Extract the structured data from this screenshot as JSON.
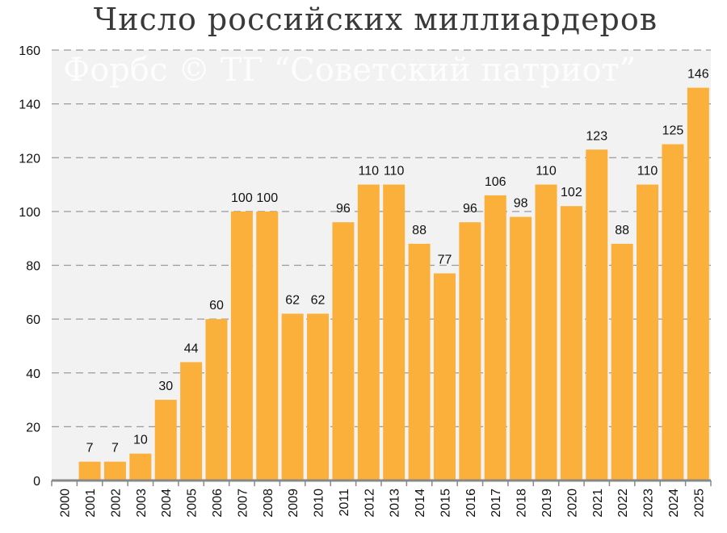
{
  "chart_data": {
    "type": "bar",
    "title": "Число российских миллиардеров",
    "watermark": "Форбс © ТГ “Советский патриот”",
    "categories": [
      "2000",
      "2001",
      "2002",
      "2003",
      "2004",
      "2005",
      "2006",
      "2007",
      "2008",
      "2009",
      "2010",
      "2011",
      "2012",
      "2013",
      "2014",
      "2015",
      "2016",
      "2017",
      "2018",
      "2019",
      "2020",
      "2021",
      "2022",
      "2023",
      "2024",
      "2025"
    ],
    "values": [
      0,
      7,
      7,
      10,
      30,
      44,
      60,
      100,
      100,
      62,
      62,
      96,
      110,
      110,
      88,
      77,
      96,
      106,
      98,
      110,
      102,
      123,
      88,
      110,
      125,
      146
    ],
    "data_labels": [
      "",
      "7",
      "7",
      "10",
      "30",
      "44",
      "60",
      "100",
      "100",
      "62",
      "62",
      "96",
      "110",
      "110",
      "88",
      "77",
      "96",
      "106",
      "98",
      "110",
      "102",
      "123",
      "88",
      "110",
      "125",
      "146"
    ],
    "y_ticks": [
      0,
      20,
      40,
      60,
      80,
      100,
      120,
      140,
      160
    ],
    "ylim": [
      0,
      160
    ],
    "xlabel": "",
    "ylabel": "",
    "grid": true,
    "colors": {
      "bar": "#FBB03B",
      "plot_bg": "#F2F2F2",
      "grid": "#9a9a9a",
      "axis": "#888888"
    }
  }
}
